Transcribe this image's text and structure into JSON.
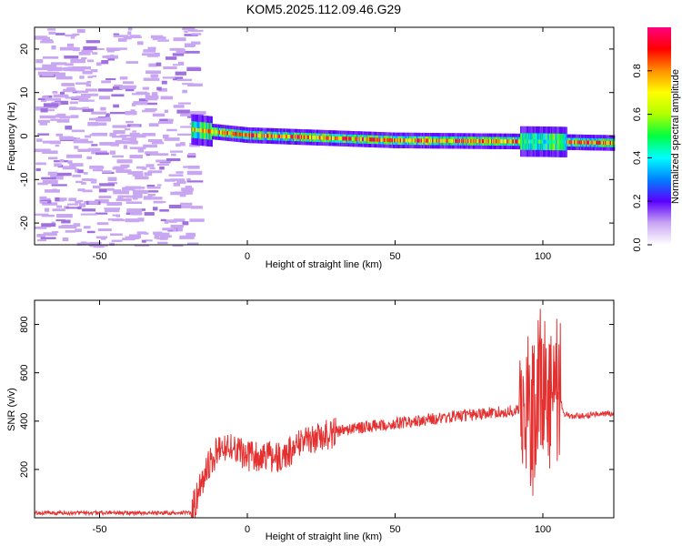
{
  "title": "KOM5.2025.112.09.46.G29",
  "colors": {
    "snr_line": "#e53030",
    "noise_speckle": "#c9a6f2",
    "noise_speckle_dark": "#a070e0",
    "colormap": [
      "#ffffff",
      "#c9a6f2",
      "#5a00ff",
      "#0080ff",
      "#00ffff",
      "#00ff40",
      "#b0ff00",
      "#ffff00",
      "#ff9000",
      "#ff0000",
      "#ff0080"
    ]
  },
  "chart_data": [
    {
      "type": "heatmap",
      "title": "KOM5.2025.112.09.46.G29",
      "xlabel": "Height of straight line (km)",
      "ylabel": "Frequency (Hz)",
      "xlim": [
        -72,
        124
      ],
      "ylim": [
        -25,
        25
      ],
      "xticks": [
        -50,
        0,
        50,
        100
      ],
      "yticks": [
        -20,
        -10,
        0,
        10,
        20
      ],
      "colorbar": {
        "label": "Normalized spectral amplitude",
        "range": [
          0,
          1
        ],
        "ticks": [
          "0.0",
          "0.2",
          "0.4",
          "0.6",
          "0.8"
        ]
      },
      "signal_start_km": -19,
      "signal_track": [
        {
          "x": -19,
          "freq": 1.5
        },
        {
          "x": 0,
          "freq": 0.2
        },
        {
          "x": 50,
          "freq": -1.0
        },
        {
          "x": 100,
          "freq": -1.3
        },
        {
          "x": 124,
          "freq": -1.6
        }
      ]
    },
    {
      "type": "line",
      "xlabel": "Height of straight line (km)",
      "ylabel": "SNR (v/v)",
      "xlim": [
        -72,
        124
      ],
      "ylim": [
        0,
        900
      ],
      "xticks": [
        -50,
        0,
        50,
        100
      ],
      "yticks": [
        200,
        400,
        600,
        800
      ],
      "series": [
        {
          "x": [
            -72,
            -60,
            -40,
            -25,
            -19,
            -16,
            -14,
            -10,
            -5,
            0,
            5,
            10,
            15,
            20,
            30,
            40,
            50,
            60,
            70,
            80,
            90,
            95,
            97,
            99,
            101,
            103,
            105,
            107,
            110,
            115,
            120,
            124
          ],
          "values": [
            20,
            20,
            20,
            20,
            22,
            120,
            200,
            280,
            300,
            250,
            260,
            250,
            280,
            320,
            355,
            375,
            390,
            405,
            420,
            430,
            445,
            455,
            400,
            560,
            520,
            480,
            560,
            430,
            420,
            425,
            430,
            430
          ]
        }
      ]
    }
  ]
}
